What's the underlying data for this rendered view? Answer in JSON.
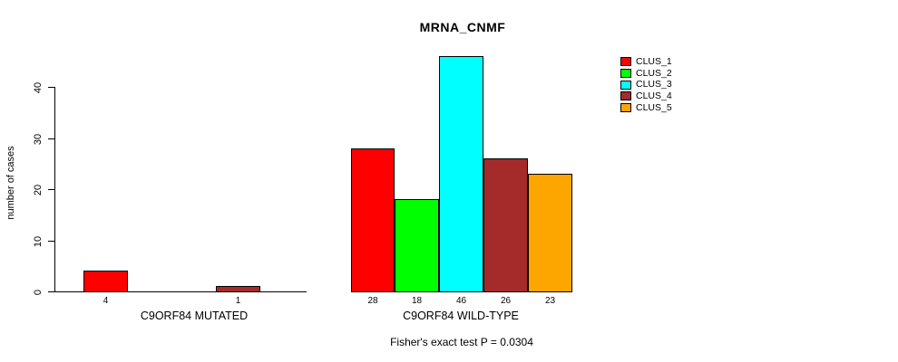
{
  "title": "MRNA_CNMF",
  "y_axis": {
    "label": "number of cases",
    "ticks": [
      0,
      10,
      20,
      30,
      40
    ]
  },
  "legend": {
    "position": "top-right",
    "entries": [
      {
        "label": "CLUS_1",
        "color": "#FF0000"
      },
      {
        "label": "CLUS_2",
        "color": "#00FF00"
      },
      {
        "label": "CLUS_3",
        "color": "#00FFFF"
      },
      {
        "label": "CLUS_4",
        "color": "#A52A2A"
      },
      {
        "label": "CLUS_5",
        "color": "#FFA500"
      }
    ]
  },
  "footnote": "Fisher's exact test P = 0.0304",
  "chart_data": {
    "type": "bar",
    "title": "MRNA_CNMF",
    "xlabel": "",
    "ylabel": "number of cases",
    "ylim": [
      0,
      46
    ],
    "yticks": [
      0,
      10,
      20,
      30,
      40
    ],
    "grid": false,
    "legend_position": "top-right",
    "categories": [
      "C9ORF84 MUTATED",
      "C9ORF84 WILD-TYPE"
    ],
    "series": [
      {
        "name": "CLUS_1",
        "color": "#FF0000",
        "values": [
          4,
          28
        ]
      },
      {
        "name": "CLUS_2",
        "color": "#00FF00",
        "values": [
          0,
          18
        ]
      },
      {
        "name": "CLUS_3",
        "color": "#00FFFF",
        "values": [
          0,
          46
        ]
      },
      {
        "name": "CLUS_4",
        "color": "#A52A2A",
        "values": [
          1,
          26
        ]
      },
      {
        "name": "CLUS_5",
        "color": "#FFA500",
        "values": [
          0,
          23
        ]
      }
    ],
    "bar_value_labels": [
      [
        "4",
        null,
        null,
        "1",
        null
      ],
      [
        "28",
        "18",
        "46",
        "26",
        "23"
      ]
    ],
    "annotation": "Fisher's exact test P = 0.0304"
  }
}
